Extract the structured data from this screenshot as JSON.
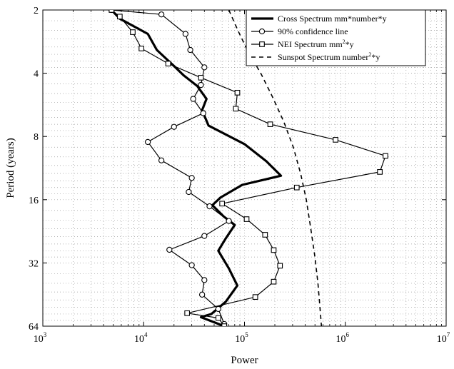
{
  "chart_data": {
    "type": "line",
    "title": "",
    "xlabel": "Power",
    "ylabel": "Period (years)",
    "x_scale": "log",
    "y_scale": "log",
    "y_inverted": true,
    "xlim": [
      1000,
      10000000
    ],
    "ylim": [
      2,
      64
    ],
    "grid": true,
    "legend_position": "top-right",
    "x_tick_labels": [
      {
        "base": "10",
        "exp": "3",
        "value": 1000
      },
      {
        "base": "10",
        "exp": "4",
        "value": 10000
      },
      {
        "base": "10",
        "exp": "5",
        "value": 100000
      },
      {
        "base": "10",
        "exp": "6",
        "value": 1000000
      },
      {
        "base": "10",
        "exp": "7",
        "value": 10000000
      }
    ],
    "y_ticks": [
      {
        "label": "2",
        "value": 2
      },
      {
        "label": "4",
        "value": 4
      },
      {
        "label": "8",
        "value": 8
      },
      {
        "label": "16",
        "value": 16
      },
      {
        "label": "32",
        "value": 32
      },
      {
        "label": "64",
        "value": 64
      }
    ],
    "series": [
      {
        "name": "Cross Spectrum mm*number*y",
        "name_parts": [
          "Cross Spectrum mm*number*y"
        ],
        "style": "thick-solid",
        "color": "#000000",
        "marker": "none",
        "points": [
          {
            "x": 4800,
            "y": 2.0
          },
          {
            "x": 5800,
            "y": 2.2
          },
          {
            "x": 11000,
            "y": 2.6
          },
          {
            "x": 13500,
            "y": 3.1
          },
          {
            "x": 20000,
            "y": 3.7
          },
          {
            "x": 25000,
            "y": 4.1
          },
          {
            "x": 34000,
            "y": 4.6
          },
          {
            "x": 42000,
            "y": 5.3
          },
          {
            "x": 38000,
            "y": 6.0
          },
          {
            "x": 44000,
            "y": 7.1
          },
          {
            "x": 100000,
            "y": 8.7
          },
          {
            "x": 165000,
            "y": 10.5
          },
          {
            "x": 230000,
            "y": 12.3
          },
          {
            "x": 95000,
            "y": 13.6
          },
          {
            "x": 58000,
            "y": 15.6
          },
          {
            "x": 48000,
            "y": 17.0
          },
          {
            "x": 62000,
            "y": 19.2
          },
          {
            "x": 80000,
            "y": 21.1
          },
          {
            "x": 65000,
            "y": 24.5
          },
          {
            "x": 55000,
            "y": 28.0
          },
          {
            "x": 70000,
            "y": 34.0
          },
          {
            "x": 85000,
            "y": 41.0
          },
          {
            "x": 65000,
            "y": 49.0
          },
          {
            "x": 47000,
            "y": 56.0
          },
          {
            "x": 37000,
            "y": 58.0
          },
          {
            "x": 63000,
            "y": 64.0
          }
        ]
      },
      {
        "name": "90% confidence line",
        "name_parts": [
          "90% confidence line"
        ],
        "style": "thin-solid",
        "color": "#000000",
        "marker": "circle",
        "points": [
          {
            "x": 4800,
            "y": 2.0
          },
          {
            "x": 15000,
            "y": 2.1
          },
          {
            "x": 26000,
            "y": 2.6
          },
          {
            "x": 29000,
            "y": 3.1
          },
          {
            "x": 40000,
            "y": 3.75
          },
          {
            "x": 37000,
            "y": 4.55
          },
          {
            "x": 31000,
            "y": 5.3
          },
          {
            "x": 39000,
            "y": 6.2
          },
          {
            "x": 20000,
            "y": 7.2
          },
          {
            "x": 11000,
            "y": 8.5
          },
          {
            "x": 15000,
            "y": 10.4
          },
          {
            "x": 30000,
            "y": 12.6
          },
          {
            "x": 28000,
            "y": 14.7
          },
          {
            "x": 45000,
            "y": 17.2
          },
          {
            "x": 70000,
            "y": 20.2
          },
          {
            "x": 40000,
            "y": 23.8
          },
          {
            "x": 18000,
            "y": 27.7
          },
          {
            "x": 30000,
            "y": 32.8
          },
          {
            "x": 40000,
            "y": 38.6
          },
          {
            "x": 38000,
            "y": 45.3
          },
          {
            "x": 55000,
            "y": 53.0
          },
          {
            "x": 63000,
            "y": 62.5
          }
        ]
      },
      {
        "name": "NEI Spectrum mm²*y",
        "name_parts": [
          "NEI Spectrum  mm",
          "2",
          "*y"
        ],
        "style": "thin-solid",
        "color": "#000000",
        "marker": "square",
        "points": [
          {
            "x": 4800,
            "y": 2.0
          },
          {
            "x": 5800,
            "y": 2.15
          },
          {
            "x": 7800,
            "y": 2.55
          },
          {
            "x": 9500,
            "y": 3.05
          },
          {
            "x": 17500,
            "y": 3.6
          },
          {
            "x": 37000,
            "y": 4.2
          },
          {
            "x": 85000,
            "y": 4.95
          },
          {
            "x": 82000,
            "y": 5.9
          },
          {
            "x": 180000,
            "y": 7.0
          },
          {
            "x": 800000,
            "y": 8.3
          },
          {
            "x": 2500000,
            "y": 9.9
          },
          {
            "x": 2200000,
            "y": 11.8
          },
          {
            "x": 330000,
            "y": 14.0
          },
          {
            "x": 60000,
            "y": 16.7
          },
          {
            "x": 105000,
            "y": 19.8
          },
          {
            "x": 160000,
            "y": 23.5
          },
          {
            "x": 195000,
            "y": 27.8
          },
          {
            "x": 225000,
            "y": 33.0
          },
          {
            "x": 195000,
            "y": 39.3
          },
          {
            "x": 128000,
            "y": 46.5
          },
          {
            "x": 27000,
            "y": 55.5
          },
          {
            "x": 55000,
            "y": 58.5
          },
          {
            "x": 63000,
            "y": 64.0
          }
        ]
      },
      {
        "name": "Sunspot Spectrum number²*y",
        "name_parts": [
          "Sunspot Spectrum number",
          "2",
          "*y"
        ],
        "style": "dashed",
        "color": "#000000",
        "marker": "none",
        "points": [
          {
            "x": 70000,
            "y": 2.0
          },
          {
            "x": 86000,
            "y": 2.5
          },
          {
            "x": 110000,
            "y": 3.2
          },
          {
            "x": 145000,
            "y": 4.0
          },
          {
            "x": 190000,
            "y": 5.2
          },
          {
            "x": 245000,
            "y": 6.8
          },
          {
            "x": 305000,
            "y": 9.0
          },
          {
            "x": 360000,
            "y": 12.0
          },
          {
            "x": 410000,
            "y": 16.0
          },
          {
            "x": 455000,
            "y": 22.0
          },
          {
            "x": 500000,
            "y": 30.0
          },
          {
            "x": 535000,
            "y": 40.0
          },
          {
            "x": 560000,
            "y": 52.0
          },
          {
            "x": 580000,
            "y": 64.0
          }
        ]
      }
    ]
  }
}
